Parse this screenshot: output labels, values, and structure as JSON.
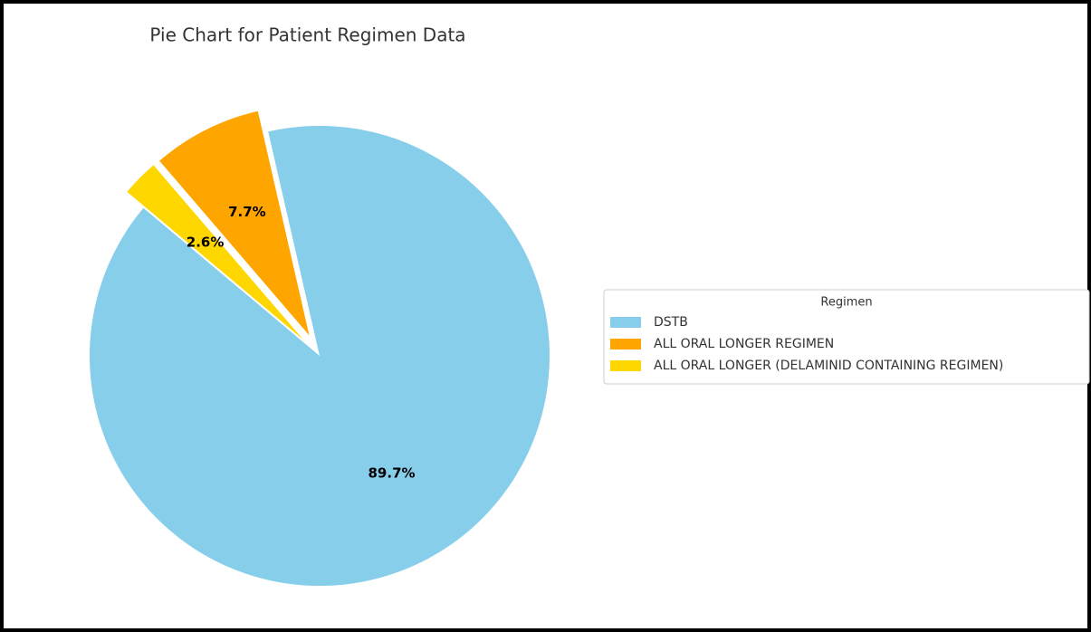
{
  "chart_data": {
    "type": "pie",
    "title": "Pie Chart for Patient Regimen Data",
    "legend_title": "Regimen",
    "legend": "right",
    "categories": [
      "DSTB",
      "ALL ORAL LONGER REGIMEN",
      "ALL ORAL LONGER (DELAMINID CONTAINING REGIMEN)"
    ],
    "values": [
      89.7,
      7.7,
      2.6
    ],
    "value_labels": [
      "89.7%",
      "7.7%",
      "2.6%"
    ],
    "colors": [
      "#87ceeb",
      "#ffa500",
      "#ffd700"
    ]
  }
}
